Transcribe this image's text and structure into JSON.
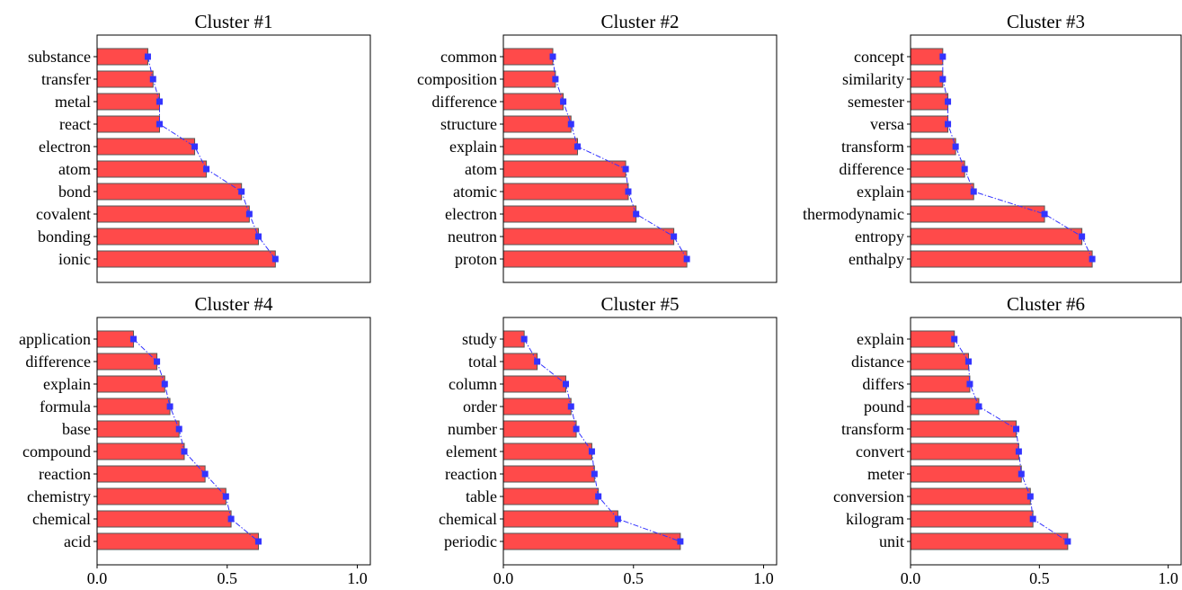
{
  "chart_data": [
    {
      "type": "bar",
      "orientation": "horizontal",
      "title": "Cluster #1",
      "categories": [
        "substance",
        "transfer",
        "metal",
        "react",
        "electron",
        "atom",
        "bond",
        "covalent",
        "bonding",
        "ionic"
      ],
      "values": [
        0.195,
        0.215,
        0.24,
        0.24,
        0.375,
        0.42,
        0.555,
        0.585,
        0.62,
        0.685
      ],
      "xlim": [
        0,
        1.05
      ],
      "xticks": [
        "0.0",
        "0.5",
        "1.0"
      ],
      "show_xticks": false
    },
    {
      "type": "bar",
      "orientation": "horizontal",
      "title": "Cluster #2",
      "categories": [
        "common",
        "composition",
        "difference",
        "structure",
        "explain",
        "atom",
        "atomic",
        "electron",
        "neutron",
        "proton"
      ],
      "values": [
        0.19,
        0.2,
        0.23,
        0.26,
        0.285,
        0.47,
        0.48,
        0.51,
        0.655,
        0.705
      ],
      "xlim": [
        0,
        1.05
      ],
      "xticks": [
        "0.0",
        "0.5",
        "1.0"
      ],
      "show_xticks": false
    },
    {
      "type": "bar",
      "orientation": "horizontal",
      "title": "Cluster #3",
      "categories": [
        "concept",
        "similarity",
        "semester",
        "versa",
        "transform",
        "difference",
        "explain",
        "thermodynamic",
        "entropy",
        "enthalpy"
      ],
      "values": [
        0.125,
        0.125,
        0.145,
        0.145,
        0.175,
        0.21,
        0.245,
        0.52,
        0.665,
        0.705
      ],
      "xlim": [
        0,
        1.05
      ],
      "xticks": [
        "0.0",
        "0.5",
        "1.0"
      ],
      "show_xticks": false
    },
    {
      "type": "bar",
      "orientation": "horizontal",
      "title": "Cluster #4",
      "categories": [
        "application",
        "difference",
        "explain",
        "formula",
        "base",
        "compound",
        "reaction",
        "chemistry",
        "chemical",
        "acid"
      ],
      "values": [
        0.14,
        0.23,
        0.26,
        0.28,
        0.315,
        0.335,
        0.415,
        0.495,
        0.515,
        0.62
      ],
      "xlim": [
        0,
        1.05
      ],
      "xticks": [
        "0.0",
        "0.5",
        "1.0"
      ],
      "show_xticks": true
    },
    {
      "type": "bar",
      "orientation": "horizontal",
      "title": "Cluster #5",
      "categories": [
        "study",
        "total",
        "column",
        "order",
        "number",
        "element",
        "reaction",
        "table",
        "chemical",
        "periodic"
      ],
      "values": [
        0.08,
        0.13,
        0.24,
        0.26,
        0.28,
        0.34,
        0.35,
        0.365,
        0.44,
        0.68
      ],
      "xlim": [
        0,
        1.05
      ],
      "xticks": [
        "0.0",
        "0.5",
        "1.0"
      ],
      "show_xticks": true
    },
    {
      "type": "bar",
      "orientation": "horizontal",
      "title": "Cluster #6",
      "categories": [
        "explain",
        "distance",
        "differs",
        "pound",
        "transform",
        "convert",
        "meter",
        "conversion",
        "kilogram",
        "unit"
      ],
      "values": [
        0.17,
        0.225,
        0.23,
        0.265,
        0.41,
        0.42,
        0.43,
        0.465,
        0.475,
        0.61
      ],
      "xlim": [
        0,
        1.05
      ],
      "xticks": [
        "0.0",
        "0.5",
        "1.0"
      ],
      "show_xticks": true
    }
  ],
  "colors": {
    "bar_fill": "#ff4a4a",
    "bar_edge": "#555555",
    "marker": "#3333ff",
    "line": "#3333ff",
    "axis": "#000000"
  }
}
